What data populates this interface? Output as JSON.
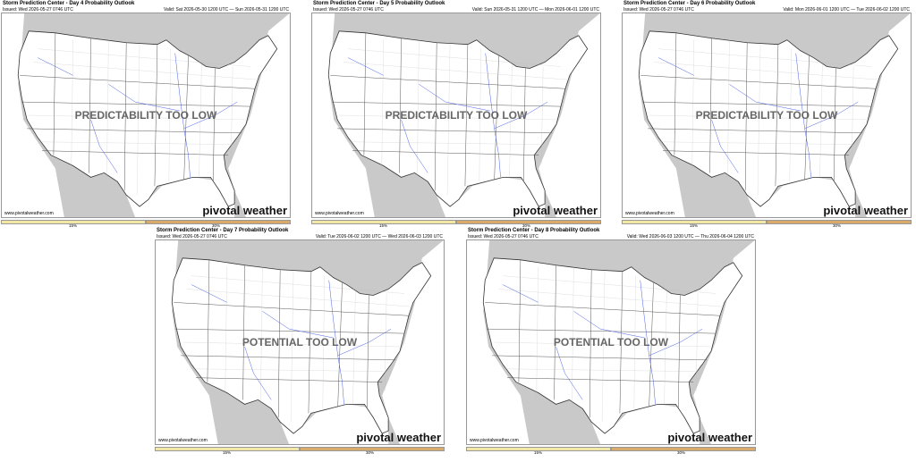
{
  "panels": [
    {
      "title": "Storm Prediction Center - Day 4 Probability Outlook",
      "issued": "Issued: Wed 2026-05-27 0746 UTC",
      "valid": "Valid: Sat 2026-05-30 1200 UTC — Sun 2026-05-31 1200 UTC",
      "overlay": "PREDICTABILITY TOO LOW"
    },
    {
      "title": "Storm Prediction Center - Day 5 Probability Outlook",
      "issued": "Issued: Wed 2026-05-27 0746 UTC",
      "valid": "Valid: Sun 2026-05-31 1200 UTC — Mon 2026-06-01 1200 UTC",
      "overlay": "PREDICTABILITY TOO LOW"
    },
    {
      "title": "Storm Prediction Center - Day 6 Probability Outlook",
      "issued": "Issued: Wed 2026-05-27 0746 UTC",
      "valid": "Valid: Mon 2026-06-01 1200 UTC — Tue 2026-06-02 1200 UTC",
      "overlay": "PREDICTABILITY TOO LOW"
    },
    {
      "title": "Storm Prediction Center - Day 7 Probability Outlook",
      "issued": "Issued: Wed 2026-05-27 0746 UTC",
      "valid": "Valid: Tue 2026-06-02 1200 UTC — Wed 2026-06-03 1200 UTC",
      "overlay": "POTENTIAL TOO LOW"
    },
    {
      "title": "Storm Prediction Center - Day 8 Probability Outlook",
      "issued": "Issued: Wed 2026-05-27 0746 UTC",
      "valid": "Valid: Wed 2026-06-03 1200 UTC — Thu 2026-06-04 1200 UTC",
      "overlay": "POTENTIAL TOO LOW"
    }
  ],
  "site": "www.pivotalweather.com",
  "brand": "pivotal weather",
  "legend": [
    "15%",
    "30%"
  ]
}
